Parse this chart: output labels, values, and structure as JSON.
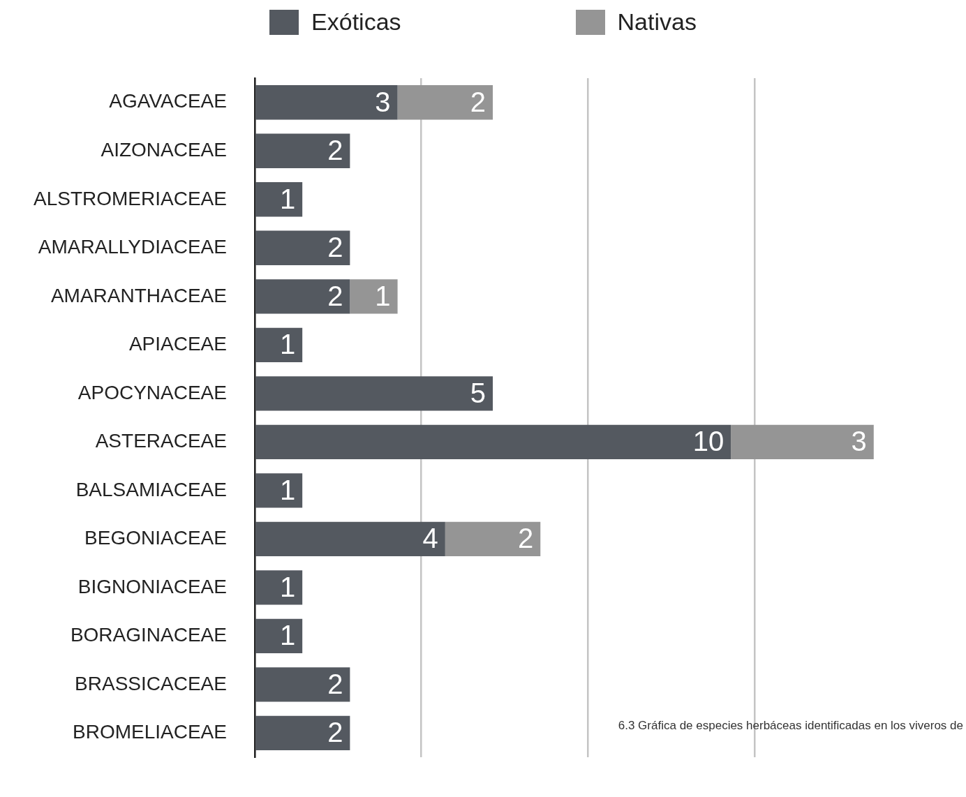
{
  "chart_data": {
    "type": "bar",
    "orientation": "horizontal",
    "stacked": true,
    "categories": [
      "AGAVACEAE",
      "AIZONACEAE",
      "ALSTROMERIACEAE",
      "AMARALLYDIACEAE",
      "AMARANTHACEAE",
      "APIACEAE",
      "APOCYNACEAE",
      "ASTERACEAE",
      "BALSAMIACEAE",
      "BEGONIACEAE",
      "BIGNONIACEAE",
      "BORAGINACEAE",
      "BRASSICACEAE",
      "BROMELIACEAE"
    ],
    "series": [
      {
        "name": "Exóticas",
        "color": "#545960",
        "values": [
          3,
          2,
          1,
          2,
          2,
          1,
          5,
          10,
          1,
          4,
          1,
          1,
          2,
          2
        ]
      },
      {
        "name": "Nativas",
        "color": "#959595",
        "values": [
          2,
          null,
          null,
          null,
          1,
          null,
          null,
          3,
          null,
          2,
          null,
          null,
          null,
          null
        ]
      }
    ],
    "xticks": [
      {
        "value": 0,
        "label": null
      },
      {
        "value": 3.5,
        "label": null
      },
      {
        "value": 7,
        "label": null
      },
      {
        "value": 10.5,
        "label": null
      }
    ],
    "tick_labels": "y",
    "grid": "x",
    "legend": "top",
    "data_labels": true,
    "annotations": [
      "6.3 Gráfica de especies herbáceas identificadas en los viveros de"
    ]
  }
}
